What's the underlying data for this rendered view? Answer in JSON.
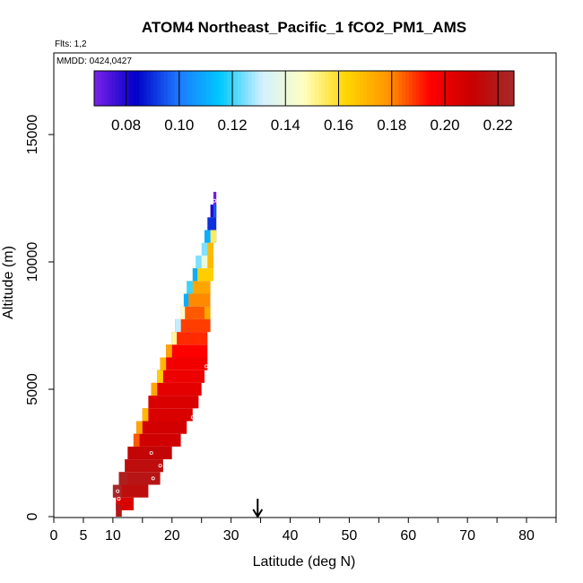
{
  "chart_data": {
    "type": "heatmap",
    "title": "ATOM4 Northeast_Pacific_1 fCO2_PM1_AMS",
    "flights_label": "Flts: 1,2",
    "dates_label": "MMDD: 0424,0427",
    "xlabel": "Latitude (deg N)",
    "ylabel": "Altitude (m)",
    "xlim": [
      0,
      85
    ],
    "ylim": [
      0,
      17500
    ],
    "x_tick_values": [
      0,
      5,
      10,
      20,
      30,
      40,
      50,
      60,
      70,
      80
    ],
    "x_tick_labels": [
      "0",
      "5",
      "10",
      "20",
      "30",
      "40",
      "50",
      "60",
      "70",
      "80"
    ],
    "x_minor_ticks": [
      15,
      25,
      35,
      45,
      55,
      65,
      75,
      85
    ],
    "y_tick_values": [
      0,
      5000,
      10000,
      15000
    ],
    "y_tick_labels": [
      "0",
      "5000",
      "10000",
      "15000"
    ],
    "marker_latitude": 34.5,
    "colorbar": {
      "min": 0.068,
      "max": 0.226,
      "tick_values": [
        0.08,
        0.1,
        0.12,
        0.14,
        0.16,
        0.18,
        0.2,
        0.22
      ],
      "tick_labels": [
        "0.08",
        "0.10",
        "0.12",
        "0.14",
        "0.16",
        "0.18",
        "0.20",
        "0.22"
      ],
      "colors": [
        "#7b22e8",
        "#0000c8",
        "#1e78ff",
        "#00c8ff",
        "#d2f0ff",
        "#ffffc0",
        "#ffd600",
        "#ff9600",
        "#ff0000",
        "#c80000",
        "#a52a2a"
      ]
    },
    "profile": [
      {
        "alt": 500,
        "lat_min": 10.5,
        "lat_max": 13.5,
        "value": 0.205
      },
      {
        "alt": 1000,
        "lat_min": 10.0,
        "lat_max": 16.0,
        "value": 0.215
      },
      {
        "alt": 1500,
        "lat_min": 11.0,
        "lat_max": 18.0,
        "value": 0.218
      },
      {
        "alt": 2000,
        "lat_min": 12.0,
        "lat_max": 18.5,
        "value": 0.215
      },
      {
        "alt": 2500,
        "lat_min": 12.5,
        "lat_max": 20.0,
        "value": 0.212
      },
      {
        "alt": 3000,
        "lat_min": 13.5,
        "lat_max": 21.5,
        "value": 0.208
      },
      {
        "alt": 3500,
        "lat_min": 14.0,
        "lat_max": 22.5,
        "value": 0.207
      },
      {
        "alt": 4000,
        "lat_min": 15.0,
        "lat_max": 23.5,
        "value": 0.205
      },
      {
        "alt": 4500,
        "lat_min": 16.0,
        "lat_max": 24.5,
        "value": 0.205
      },
      {
        "alt": 5000,
        "lat_min": 16.5,
        "lat_max": 25.0,
        "value": 0.202
      },
      {
        "alt": 5500,
        "lat_min": 17.5,
        "lat_max": 25.5,
        "value": 0.2
      },
      {
        "alt": 6000,
        "lat_min": 18.0,
        "lat_max": 26.0,
        "value": 0.198
      },
      {
        "alt": 6500,
        "lat_min": 19.0,
        "lat_max": 26.0,
        "value": 0.195
      },
      {
        "alt": 7000,
        "lat_min": 20.0,
        "lat_max": 26.0,
        "value": 0.19
      },
      {
        "alt": 7500,
        "lat_min": 20.5,
        "lat_max": 26.5,
        "value": 0.188
      },
      {
        "alt": 8000,
        "lat_min": 21.5,
        "lat_max": 26.5,
        "value": 0.185
      },
      {
        "alt": 8500,
        "lat_min": 22.0,
        "lat_max": 26.5,
        "value": 0.18
      },
      {
        "alt": 9000,
        "lat_min": 22.5,
        "lat_max": 26.5,
        "value": 0.175
      },
      {
        "alt": 9500,
        "lat_min": 23.5,
        "lat_max": 27.0,
        "value": 0.165
      },
      {
        "alt": 10000,
        "lat_min": 24.0,
        "lat_max": 27.0,
        "value": 0.14
      },
      {
        "alt": 10500,
        "lat_min": 25.0,
        "lat_max": 27.0,
        "value": 0.125
      },
      {
        "alt": 11000,
        "lat_min": 25.5,
        "lat_max": 27.5,
        "value": 0.11
      },
      {
        "alt": 11500,
        "lat_min": 26.0,
        "lat_max": 27.5,
        "value": 0.09
      },
      {
        "alt": 12000,
        "lat_min": 26.5,
        "lat_max": 27.5,
        "value": 0.08
      },
      {
        "alt": 12500,
        "lat_min": 27.0,
        "lat_max": 27.5,
        "value": 0.07
      }
    ],
    "accents": [
      {
        "alt": 250,
        "lat_min": 10.5,
        "lat_max": 11.5,
        "value": 0.218
      },
      {
        "alt": 1000,
        "lat_min": 10.0,
        "lat_max": 11.5,
        "value": 0.225
      },
      {
        "alt": 1500,
        "lat_min": 11.0,
        "lat_max": 12.5,
        "value": 0.222
      },
      {
        "alt": 3000,
        "lat_min": 13.5,
        "lat_max": 14.5,
        "value": 0.185
      },
      {
        "alt": 3500,
        "lat_min": 14.0,
        "lat_max": 15.0,
        "value": 0.175
      },
      {
        "alt": 4000,
        "lat_min": 15.0,
        "lat_max": 16.0,
        "value": 0.17
      },
      {
        "alt": 5000,
        "lat_min": 16.5,
        "lat_max": 17.5,
        "value": 0.175
      },
      {
        "alt": 5500,
        "lat_min": 17.5,
        "lat_max": 18.5,
        "value": 0.165
      },
      {
        "alt": 6000,
        "lat_min": 18.0,
        "lat_max": 19.0,
        "value": 0.17
      },
      {
        "alt": 6500,
        "lat_min": 19.0,
        "lat_max": 20.0,
        "value": 0.175
      },
      {
        "alt": 7000,
        "lat_min": 20.0,
        "lat_max": 20.8,
        "value": 0.15
      },
      {
        "alt": 7500,
        "lat_min": 20.5,
        "lat_max": 21.5,
        "value": 0.13
      },
      {
        "alt": 8000,
        "lat_min": 21.5,
        "lat_max": 22.2,
        "value": 0.145
      },
      {
        "alt": 8000,
        "lat_min": 25.5,
        "lat_max": 26.5,
        "value": 0.175
      },
      {
        "alt": 8500,
        "lat_min": 22.0,
        "lat_max": 22.8,
        "value": 0.11
      },
      {
        "alt": 9000,
        "lat_min": 22.5,
        "lat_max": 23.5,
        "value": 0.12
      },
      {
        "alt": 9500,
        "lat_min": 23.5,
        "lat_max": 24.3,
        "value": 0.11
      },
      {
        "alt": 10000,
        "lat_min": 24.0,
        "lat_max": 25.0,
        "value": 0.125
      },
      {
        "alt": 10000,
        "lat_min": 26.0,
        "lat_max": 27.0,
        "value": 0.17
      },
      {
        "alt": 10500,
        "lat_min": 26.0,
        "lat_max": 27.0,
        "value": 0.17
      },
      {
        "alt": 11000,
        "lat_min": 26.5,
        "lat_max": 27.5,
        "value": 0.155
      },
      {
        "alt": 12000,
        "lat_min": 27.0,
        "lat_max": 27.5,
        "value": 0.095
      }
    ],
    "points": [
      {
        "lat": 10.8,
        "alt": 1000,
        "value": 0.205
      },
      {
        "lat": 11.0,
        "alt": 700,
        "value": 0.2
      },
      {
        "lat": 16.5,
        "alt": 2500,
        "value": 0.205
      },
      {
        "lat": 18.0,
        "alt": 2000,
        "value": 0.205
      },
      {
        "lat": 16.8,
        "alt": 1500,
        "value": 0.21
      },
      {
        "lat": 23.5,
        "alt": 3900,
        "value": 0.198
      },
      {
        "lat": 25.8,
        "alt": 5900,
        "value": 0.2
      },
      {
        "lat": 27.2,
        "alt": 12400,
        "value": 0.075
      }
    ]
  }
}
